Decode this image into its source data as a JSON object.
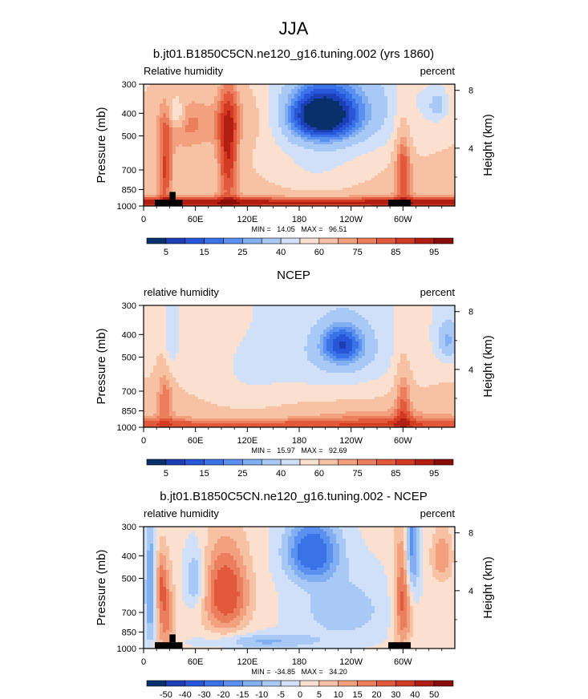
{
  "figure_title": "JJA",
  "colors": {
    "diverging": [
      "#08306b",
      "#1c3fb5",
      "#2756d8",
      "#3a72e8",
      "#5a90ef",
      "#82aef2",
      "#a8c8f5",
      "#cfe0f8",
      "#fbe0d0",
      "#f7c1a3",
      "#f2a07e",
      "#eb7e5c",
      "#e25a3b",
      "#d23a22",
      "#b31e12",
      "#8a0c08"
    ]
  },
  "chart_data": [
    {
      "type": "heatmap",
      "title": "b.jt01.B1850C5CN.ne120_g16.tuning.002 (yrs 1860)",
      "variable_label": "Relative humidity",
      "units_label": "percent",
      "ylabel": "Pressure (mb)",
      "ylabel_right": "Height (km)",
      "xticks": [
        "0",
        "60E",
        "120E",
        "180",
        "120W",
        "60W"
      ],
      "xtick_values": [
        0,
        60,
        120,
        180,
        240,
        300
      ],
      "xlim": [
        0,
        360
      ],
      "yticks": [
        "300",
        "400",
        "500",
        "700",
        "850",
        "1000"
      ],
      "ytick_values": [
        300,
        400,
        500,
        700,
        850,
        1000
      ],
      "ylim": [
        300,
        1000
      ],
      "height_ticks": [
        "8",
        "4"
      ],
      "height_tick_values": [
        8,
        4
      ],
      "minmax": "MIN =   14.05   MAX =   96.51",
      "min": 14.05,
      "max": 96.51,
      "colorbar_labels": [
        "5",
        "15",
        "25",
        "40",
        "60",
        "75",
        "85",
        "95"
      ],
      "levels": [
        5,
        10,
        15,
        20,
        25,
        30,
        40,
        50,
        60,
        70,
        75,
        80,
        85,
        90,
        95
      ],
      "topography": true,
      "field": "model"
    },
    {
      "type": "heatmap",
      "title": "NCEP",
      "variable_label": "relative humidity",
      "units_label": "percent",
      "ylabel": "Pressure (mb)",
      "ylabel_right": "Height (km)",
      "xticks": [
        "0",
        "60E",
        "120E",
        "180",
        "120W",
        "60W"
      ],
      "xtick_values": [
        0,
        60,
        120,
        180,
        240,
        300
      ],
      "xlim": [
        0,
        360
      ],
      "yticks": [
        "300",
        "400",
        "500",
        "700",
        "850",
        "1000"
      ],
      "ytick_values": [
        300,
        400,
        500,
        700,
        850,
        1000
      ],
      "ylim": [
        300,
        1000
      ],
      "height_ticks": [
        "8",
        "4"
      ],
      "height_tick_values": [
        8,
        4
      ],
      "minmax": "MIN =   15.97   MAX =   92.69",
      "min": 15.97,
      "max": 92.69,
      "colorbar_labels": [
        "5",
        "15",
        "25",
        "40",
        "60",
        "75",
        "85",
        "95"
      ],
      "levels": [
        5,
        10,
        15,
        20,
        25,
        30,
        40,
        50,
        60,
        70,
        75,
        80,
        85,
        90,
        95
      ],
      "topography": false,
      "field": "obs"
    },
    {
      "type": "heatmap",
      "title": "b.jt01.B1850C5CN.ne120_g16.tuning.002 - NCEP",
      "variable_label": "relative humidity",
      "units_label": "percent",
      "ylabel": "Pressure (mb)",
      "ylabel_right": "Height (km)",
      "xticks": [
        "0",
        "60E",
        "120E",
        "180",
        "120W",
        "60W"
      ],
      "xtick_values": [
        0,
        60,
        120,
        180,
        240,
        300
      ],
      "xlim": [
        0,
        360
      ],
      "yticks": [
        "300",
        "400",
        "500",
        "700",
        "850",
        "1000"
      ],
      "ytick_values": [
        300,
        400,
        500,
        700,
        850,
        1000
      ],
      "ylim": [
        300,
        1000
      ],
      "height_ticks": [
        "8",
        "4"
      ],
      "height_tick_values": [
        8,
        4
      ],
      "minmax": "MIN =  -34.85   MAX =   34.20",
      "min": -34.85,
      "max": 34.2,
      "colorbar_labels": [
        "-50",
        "-40",
        "-30",
        "-20",
        "-15",
        "-10",
        "-5",
        "0",
        "5",
        "10",
        "15",
        "20",
        "30",
        "40",
        "50"
      ],
      "levels": [
        -50,
        -40,
        -30,
        -20,
        -15,
        -10,
        -5,
        0,
        5,
        10,
        15,
        20,
        30,
        40,
        50
      ],
      "topography": true,
      "field": "diff"
    }
  ]
}
